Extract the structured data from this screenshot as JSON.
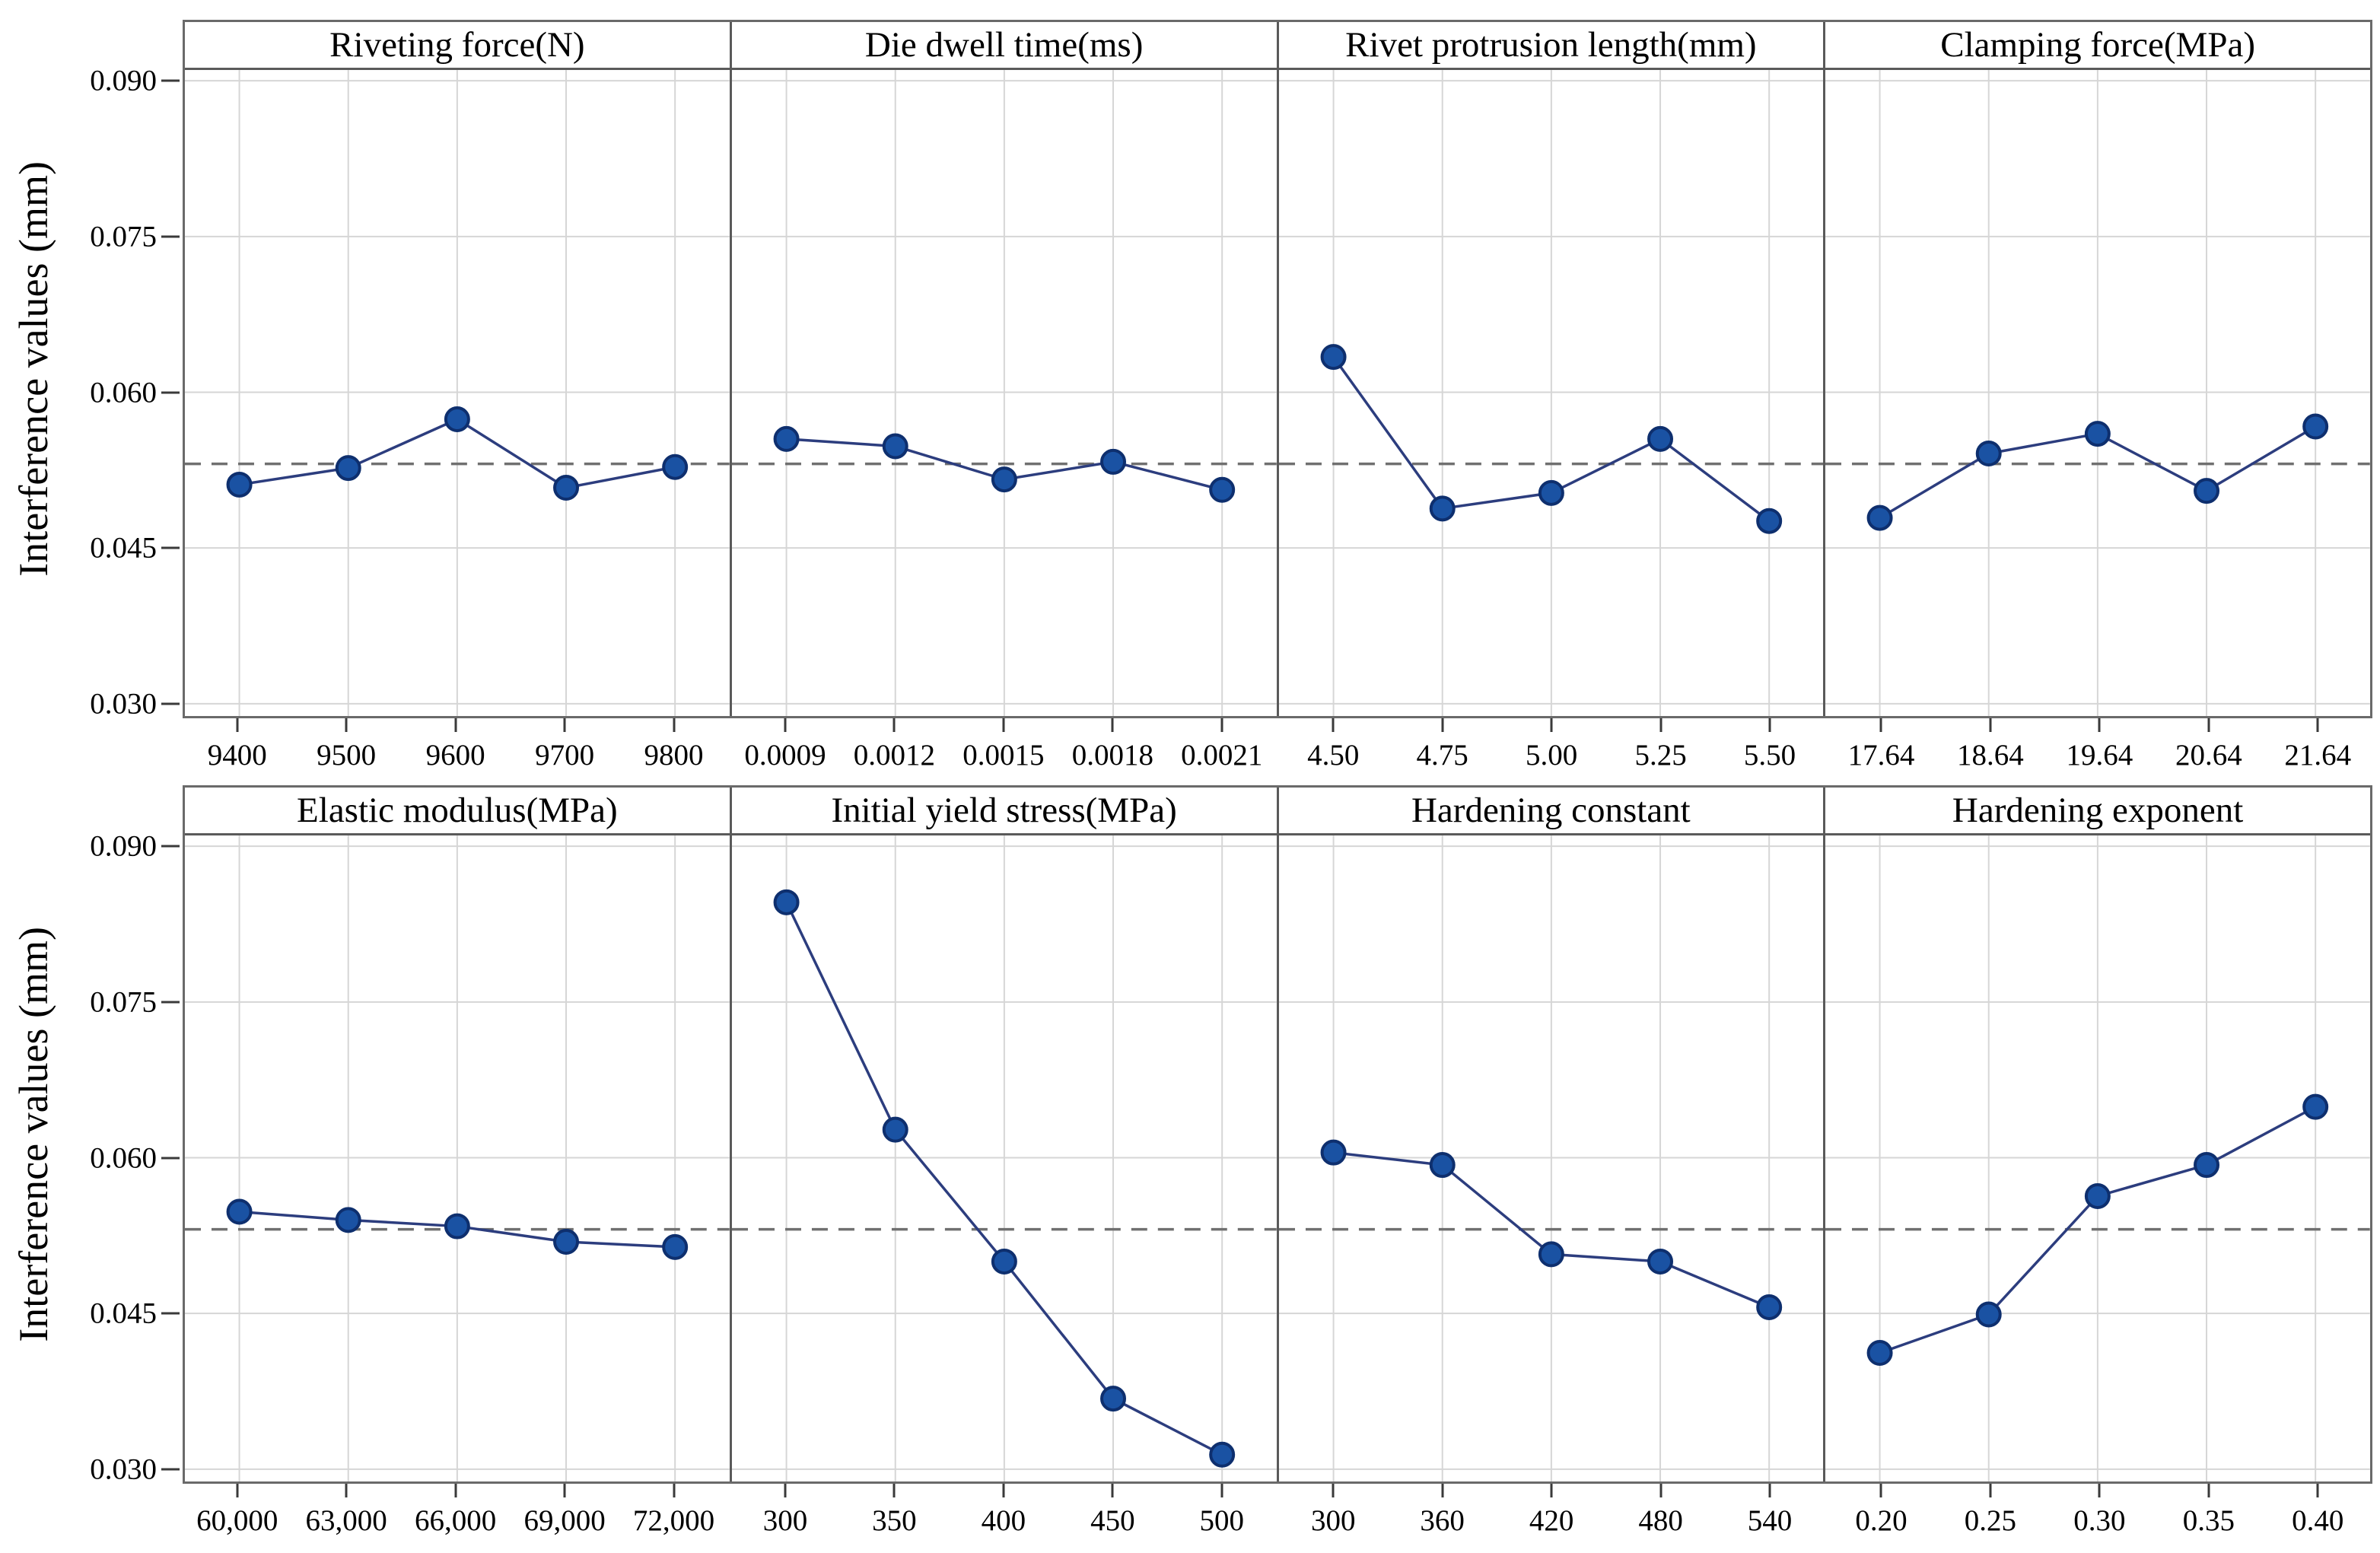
{
  "figure": {
    "y_axis_title": "Interference values (mm)",
    "y_tick_labels": [
      "0.090",
      "0.075",
      "0.060",
      "0.045",
      "0.030"
    ],
    "colors": {
      "marker_fill": "#1A52A3",
      "marker_stroke": "#0E2F6E",
      "series_line": "#2C3D7E",
      "mean_dashed": "#707070",
      "gridline": "#D6D6D6",
      "frame": "#6A6A6A",
      "text": "#000000"
    }
  },
  "chart_data": {
    "type": "line",
    "ylabel": "Interference values (mm)",
    "ylim": [
      0.03,
      0.09
    ],
    "y_ticks": [
      0.09,
      0.075,
      0.06,
      0.045,
      0.03
    ],
    "mean_line": 0.0531,
    "grid": true,
    "marker": "circle",
    "rows": [
      {
        "panels": [
          {
            "title": "Riveting force(N)",
            "categories": [
              "9400",
              "9500",
              "9600",
              "9700",
              "9800"
            ],
            "values": [
              0.0511,
              0.0527,
              0.0574,
              0.0508,
              0.0528
            ]
          },
          {
            "title": "Die dwell time(ms)",
            "categories": [
              "0.0009",
              "0.0012",
              "0.0015",
              "0.0018",
              "0.0021"
            ],
            "values": [
              0.0555,
              0.0548,
              0.0516,
              0.0533,
              0.0506
            ]
          },
          {
            "title": "Rivet protrusion length(mm)",
            "categories": [
              "4.50",
              "4.75",
              "5.00",
              "5.25",
              "5.50"
            ],
            "values": [
              0.0634,
              0.0488,
              0.0503,
              0.0555,
              0.0476
            ]
          },
          {
            "title": "Clamping force(MPa)",
            "categories": [
              "17.64",
              "18.64",
              "19.64",
              "20.64",
              "21.64"
            ],
            "values": [
              0.0479,
              0.0541,
              0.056,
              0.0505,
              0.0567
            ]
          }
        ]
      },
      {
        "panels": [
          {
            "title": "Elastic modulus(MPa)",
            "categories": [
              "60,000",
              "63,000",
              "66,000",
              "69,000",
              "72,000"
            ],
            "values": [
              0.0548,
              0.054,
              0.0534,
              0.0519,
              0.0514
            ]
          },
          {
            "title": "Initial yield stress(MPa)",
            "categories": [
              "300",
              "350",
              "400",
              "450",
              "500"
            ],
            "values": [
              0.0846,
              0.0627,
              0.05,
              0.0368,
              0.0314
            ]
          },
          {
            "title": "Hardening constant",
            "categories": [
              "300",
              "360",
              "420",
              "480",
              "540"
            ],
            "values": [
              0.0605,
              0.0593,
              0.0507,
              0.05,
              0.0456
            ]
          },
          {
            "title": "Hardening exponent",
            "categories": [
              "0.20",
              "0.25",
              "0.30",
              "0.35",
              "0.40"
            ],
            "values": [
              0.0412,
              0.0449,
              0.0563,
              0.0593,
              0.0649
            ]
          }
        ]
      }
    ]
  }
}
